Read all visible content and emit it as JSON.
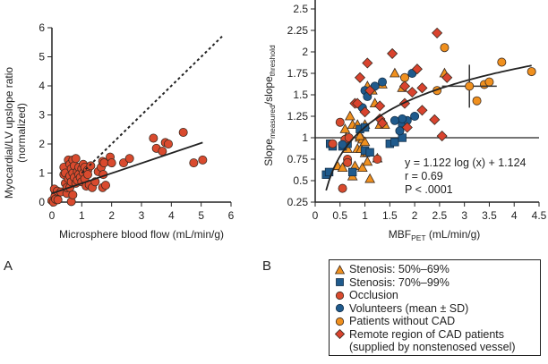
{
  "panel_labels": {
    "a": "A",
    "b": "B"
  },
  "colors": {
    "red": "#d94a2e",
    "orange": "#f0901e",
    "blue": "#1f5a8c",
    "diamond": "#d9432e",
    "stroke": "#3a2a20",
    "line": "#222222"
  },
  "legend": {
    "items": [
      {
        "marker": "triangle",
        "color": "#f0901e",
        "label": "Stenosis: 50%–69%"
      },
      {
        "marker": "square",
        "color": "#1f5a8c",
        "label": "Stenosis: 70%–99%"
      },
      {
        "marker": "circle",
        "color": "#d94a2e",
        "label": "Occlusion"
      },
      {
        "marker": "circle",
        "color": "#1f5a8c",
        "label": "Volunteers (mean ± SD)"
      },
      {
        "marker": "circle",
        "color": "#f0901e",
        "label": "Patients without CAD"
      },
      {
        "marker": "diamond",
        "color": "#d9432e",
        "label": "Remote region of CAD patients"
      }
    ],
    "continuation": "(supplied by nonstenosed vessel)"
  },
  "chart_data": [
    {
      "id": "A",
      "type": "scatter",
      "title": "",
      "xlabel": "Microsphere blood flow (mL/min/g)",
      "ylabel_line1": "Myocardial/LV upslope ratio",
      "ylabel_line2": "(normalized)",
      "xlim": [
        0,
        6
      ],
      "ylim": [
        0,
        6
      ],
      "xticks": [
        "0",
        "1",
        "2",
        "3",
        "4",
        "5",
        "6"
      ],
      "yticks": [
        "0",
        "1",
        "2",
        "3",
        "4",
        "5",
        "6"
      ],
      "identity_line": {
        "style": "dashed",
        "from": [
          1.0,
          1.0
        ],
        "to": [
          5.7,
          5.7
        ]
      },
      "fit_line": {
        "style": "solid",
        "from": [
          0,
          0.3
        ],
        "to": [
          5.05,
          2.05
        ]
      },
      "series": [
        {
          "name": "Samples",
          "marker": "circle",
          "color": "#d94a2e",
          "points": [
            [
              0.0,
              0.05
            ],
            [
              0.05,
              0.0
            ],
            [
              0.08,
              0.45
            ],
            [
              0.1,
              0.2
            ],
            [
              0.12,
              0.1
            ],
            [
              0.18,
              0.38
            ],
            [
              0.2,
              0.08
            ],
            [
              0.3,
              0.35
            ],
            [
              0.4,
              1.2
            ],
            [
              0.4,
              0.95
            ],
            [
              0.45,
              0.65
            ],
            [
              0.45,
              1.0
            ],
            [
              0.5,
              0.3
            ],
            [
              0.5,
              0.5
            ],
            [
              0.55,
              0.8
            ],
            [
              0.55,
              1.45
            ],
            [
              0.6,
              1.3
            ],
            [
              0.6,
              0.9
            ],
            [
              0.6,
              0.5
            ],
            [
              0.65,
              1.15
            ],
            [
              0.65,
              0.7
            ],
            [
              0.65,
              0.02
            ],
            [
              0.7,
              1.45
            ],
            [
              0.7,
              1.0
            ],
            [
              0.7,
              0.25
            ],
            [
              0.75,
              0.85
            ],
            [
              0.75,
              1.25
            ],
            [
              0.8,
              1.5
            ],
            [
              0.8,
              0.65
            ],
            [
              0.85,
              1.05
            ],
            [
              0.85,
              0.75
            ],
            [
              0.9,
              1.2
            ],
            [
              0.9,
              0.95
            ],
            [
              0.95,
              0.85
            ],
            [
              1.0,
              1.15
            ],
            [
              1.0,
              0.7
            ],
            [
              1.05,
              1.3
            ],
            [
              1.05,
              1.0
            ],
            [
              1.1,
              0.8
            ],
            [
              1.1,
              1.2
            ],
            [
              1.15,
              0.55
            ],
            [
              1.2,
              1.1
            ],
            [
              1.2,
              0.95
            ],
            [
              1.25,
              0.6
            ],
            [
              1.3,
              1.25
            ],
            [
              1.35,
              0.5
            ],
            [
              1.45,
              0.7
            ],
            [
              1.55,
              1.05
            ],
            [
              1.65,
              1.2
            ],
            [
              1.7,
              1.4
            ],
            [
              1.7,
              0.5
            ],
            [
              1.72,
              0.95
            ],
            [
              1.75,
              1.35
            ],
            [
              1.8,
              0.58
            ],
            [
              1.95,
              1.55
            ],
            [
              2.0,
              1.35
            ],
            [
              2.4,
              1.35
            ],
            [
              2.6,
              1.5
            ],
            [
              3.4,
              2.2
            ],
            [
              3.5,
              1.85
            ],
            [
              3.7,
              1.75
            ],
            [
              3.8,
              2.05
            ],
            [
              3.9,
              2.0
            ],
            [
              4.4,
              2.4
            ],
            [
              4.75,
              1.35
            ],
            [
              5.05,
              1.45
            ]
          ]
        }
      ]
    },
    {
      "id": "B",
      "type": "scatter",
      "title": "",
      "xlabel_main": "MBF",
      "xlabel_sub": "PET",
      "xlabel_unit": " (mL/min/g)",
      "ylabel_main1": "Slope",
      "ylabel_sub1": "measured",
      "ylabel_mid": "/slope",
      "ylabel_sub2": "threshold",
      "xlim": [
        0,
        4.5
      ],
      "ylim": [
        0.25,
        2.5
      ],
      "xticks": [
        "0",
        "0.5",
        "1",
        "1.5",
        "2",
        "2.5",
        "3",
        "3.5",
        "4",
        "4.5"
      ],
      "yticks": [
        "0.25",
        "0.5",
        "0.75",
        "1",
        "1.25",
        "1.5",
        "1.75",
        "2",
        "2.25",
        "2.5"
      ],
      "reference_line_y": 1,
      "fit": {
        "equation": "y = 1.122 log (x) + 1.124",
        "r": "r = 0.69",
        "p": "P < .0001",
        "a": 1.122,
        "b": 1.124,
        "x_range": [
          0.22,
          4.35
        ]
      },
      "volunteer_mean": {
        "x": 3.1,
        "y": 1.6,
        "sd_x": 0.55,
        "sd_y": 0.25
      },
      "series": [
        {
          "name": "Stenosis: 50%–69%",
          "marker": "triangle",
          "color": "#f0901e",
          "points": [
            [
              0.45,
              0.67
            ],
            [
              0.55,
              0.65
            ],
            [
              0.6,
              1.1
            ],
            [
              0.62,
              1.0
            ],
            [
              0.65,
              0.87
            ],
            [
              0.7,
              1.25
            ],
            [
              0.75,
              1.15
            ],
            [
              0.75,
              0.55
            ],
            [
              0.8,
              0.67
            ],
            [
              0.85,
              1.15
            ],
            [
              0.85,
              0.87
            ],
            [
              0.9,
              1.0
            ],
            [
              0.92,
              0.87
            ],
            [
              0.95,
              0.98
            ],
            [
              0.95,
              0.65
            ],
            [
              1.0,
              1.15
            ],
            [
              1.0,
              0.95
            ],
            [
              1.0,
              0.82
            ],
            [
              1.05,
              1.6
            ],
            [
              1.05,
              0.72
            ],
            [
              1.1,
              0.52
            ],
            [
              1.15,
              1.55
            ],
            [
              1.2,
              1.4
            ],
            [
              1.25,
              0.76
            ],
            [
              1.3,
              1.15
            ],
            [
              1.4,
              1.15
            ],
            [
              1.75,
              1.58
            ],
            [
              0.9,
              1.02
            ],
            [
              1.05,
              0.83
            ],
            [
              1.6,
              1.75
            ],
            [
              2.6,
              1.75
            ],
            [
              1.35,
              1.62
            ]
          ]
        },
        {
          "name": "Stenosis: 70%–99%",
          "marker": "square",
          "color": "#1f5a8c",
          "points": [
            [
              0.22,
              0.57
            ],
            [
              0.28,
              0.6
            ],
            [
              0.3,
              0.93
            ],
            [
              0.35,
              0.9
            ],
            [
              0.55,
              0.9
            ],
            [
              0.65,
              0.93
            ],
            [
              0.75,
              0.6
            ],
            [
              0.9,
              1.1
            ],
            [
              1.0,
              1.12
            ],
            [
              1.0,
              0.85
            ],
            [
              1.1,
              0.83
            ],
            [
              1.5,
              0.93
            ],
            [
              1.6,
              0.95
            ],
            [
              1.75,
              1.0
            ],
            [
              1.75,
              1.17
            ]
          ]
        },
        {
          "name": "Occlusion",
          "marker": "circle",
          "color": "#d94a2e",
          "points": [
            [
              0.35,
              0.93
            ],
            [
              0.5,
              1.18
            ],
            [
              0.55,
              0.41
            ],
            [
              0.6,
              0.98
            ],
            [
              0.65,
              0.75
            ],
            [
              0.65,
              0.71
            ],
            [
              0.68,
              1.0
            ],
            [
              1.25,
              0.75
            ]
          ]
        },
        {
          "name": "Volunteers (mean ± SD)",
          "marker": "circle",
          "color": "#1f5a8c",
          "points": [
            [
              0.55,
              0.92
            ],
            [
              0.95,
              1.35
            ],
            [
              1.0,
              1.55
            ],
            [
              1.05,
              1.48
            ],
            [
              1.2,
              1.6
            ],
            [
              1.35,
              1.65
            ],
            [
              1.7,
              1.08
            ],
            [
              1.85,
              1.2
            ],
            [
              1.95,
              1.75
            ],
            [
              1.75,
              1.22
            ],
            [
              2.0,
              1.25
            ],
            [
              1.6,
              1.2
            ]
          ]
        },
        {
          "name": "Patients without CAD",
          "marker": "circle",
          "color": "#f0901e",
          "points": [
            [
              1.8,
              1.7
            ],
            [
              2.45,
              1.55
            ],
            [
              2.6,
              2.05
            ],
            [
              3.4,
              1.62
            ],
            [
              3.5,
              1.65
            ],
            [
              3.25,
              1.43
            ],
            [
              3.75,
              1.88
            ],
            [
              4.35,
              1.77
            ]
          ]
        },
        {
          "name": "Remote region of CAD patients",
          "marker": "diamond",
          "color": "#d9432e",
          "points": [
            [
              0.8,
              1.4
            ],
            [
              0.85,
              1.4
            ],
            [
              0.9,
              1.7
            ],
            [
              1.0,
              1.3
            ],
            [
              1.05,
              1.87
            ],
            [
              1.1,
              1.55
            ],
            [
              1.3,
              1.37
            ],
            [
              1.3,
              1.22
            ],
            [
              1.35,
              1.17
            ],
            [
              1.55,
              1.98
            ],
            [
              1.8,
              1.6
            ],
            [
              1.8,
              1.4
            ],
            [
              1.85,
              1.12
            ],
            [
              1.95,
              1.53
            ],
            [
              2.05,
              1.8
            ],
            [
              2.15,
              1.58
            ],
            [
              2.15,
              1.32
            ],
            [
              2.4,
              1.21
            ],
            [
              2.45,
              2.22
            ],
            [
              2.55,
              1.02
            ],
            [
              2.65,
              1.7
            ]
          ]
        }
      ]
    }
  ]
}
